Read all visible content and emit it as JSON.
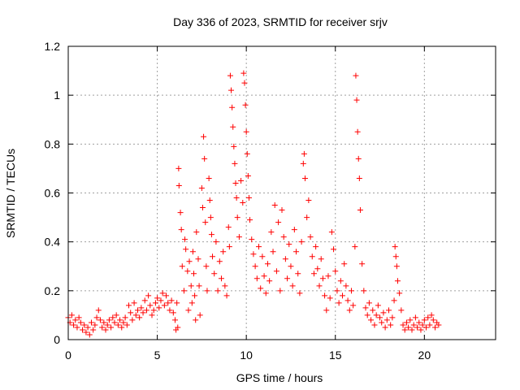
{
  "chart_data": {
    "type": "scatter",
    "title": "Day 336 of 2023, SRMTID for receiver srjv",
    "xlabel": "GPS time / hours",
    "ylabel": "SRMTID / TECUs",
    "xlim": [
      0,
      24
    ],
    "ylim": [
      0,
      1.2
    ],
    "x_ticks": [
      0,
      5,
      10,
      15,
      20
    ],
    "x_tick_labels": [
      "0",
      "5",
      "10",
      "15",
      "20"
    ],
    "y_ticks": [
      0,
      0.2,
      0.4,
      0.6,
      0.8,
      1.0,
      1.2
    ],
    "y_tick_labels": [
      "0",
      "0.2",
      "0.4",
      "0.6",
      "0.8",
      "1",
      "1.2"
    ],
    "grid": true,
    "marker": "+",
    "series": [
      {
        "name": "SRMTID",
        "color": "#ff0000",
        "points": [
          [
            0.0,
            0.09
          ],
          [
            0.1,
            0.07
          ],
          [
            0.2,
            0.1
          ],
          [
            0.3,
            0.06
          ],
          [
            0.4,
            0.08
          ],
          [
            0.5,
            0.05
          ],
          [
            0.6,
            0.09
          ],
          [
            0.7,
            0.07
          ],
          [
            0.8,
            0.04
          ],
          [
            0.9,
            0.06
          ],
          [
            1.0,
            0.03
          ],
          [
            1.1,
            0.05
          ],
          [
            1.2,
            0.02
          ],
          [
            1.3,
            0.07
          ],
          [
            1.4,
            0.04
          ],
          [
            1.5,
            0.06
          ],
          [
            1.6,
            0.09
          ],
          [
            1.7,
            0.12
          ],
          [
            1.8,
            0.08
          ],
          [
            1.9,
            0.05
          ],
          [
            2.0,
            0.07
          ],
          [
            2.1,
            0.04
          ],
          [
            2.2,
            0.06
          ],
          [
            2.3,
            0.08
          ],
          [
            2.4,
            0.05
          ],
          [
            2.5,
            0.09
          ],
          [
            2.6,
            0.07
          ],
          [
            2.7,
            0.1
          ],
          [
            2.8,
            0.06
          ],
          [
            2.9,
            0.08
          ],
          [
            3.0,
            0.05
          ],
          [
            3.1,
            0.07
          ],
          [
            3.2,
            0.09
          ],
          [
            3.3,
            0.06
          ],
          [
            3.4,
            0.14
          ],
          [
            3.5,
            0.11
          ],
          [
            3.6,
            0.08
          ],
          [
            3.7,
            0.15
          ],
          [
            3.8,
            0.1
          ],
          [
            3.9,
            0.12
          ],
          [
            4.0,
            0.09
          ],
          [
            4.1,
            0.13
          ],
          [
            4.2,
            0.11
          ],
          [
            4.3,
            0.16
          ],
          [
            4.4,
            0.12
          ],
          [
            4.5,
            0.18
          ],
          [
            4.6,
            0.14
          ],
          [
            4.7,
            0.1
          ],
          [
            4.8,
            0.12
          ],
          [
            4.9,
            0.15
          ],
          [
            5.0,
            0.17
          ],
          [
            5.1,
            0.13
          ],
          [
            5.2,
            0.16
          ],
          [
            5.3,
            0.19
          ],
          [
            5.4,
            0.14
          ],
          [
            5.5,
            0.18
          ],
          [
            5.6,
            0.15
          ],
          [
            5.7,
            0.12
          ],
          [
            5.8,
            0.16
          ],
          [
            5.9,
            0.11
          ],
          [
            6.0,
            0.08
          ],
          [
            6.05,
            0.04
          ],
          [
            6.1,
            0.15
          ],
          [
            6.15,
            0.05
          ],
          [
            6.2,
            0.7
          ],
          [
            6.22,
            0.63
          ],
          [
            6.3,
            0.52
          ],
          [
            6.35,
            0.45
          ],
          [
            6.4,
            0.3
          ],
          [
            6.5,
            0.2
          ],
          [
            6.55,
            0.41
          ],
          [
            6.6,
            0.37
          ],
          [
            6.7,
            0.28
          ],
          [
            6.75,
            0.12
          ],
          [
            6.8,
            0.32
          ],
          [
            6.9,
            0.22
          ],
          [
            6.95,
            0.15
          ],
          [
            7.0,
            0.36
          ],
          [
            7.05,
            0.27
          ],
          [
            7.1,
            0.18
          ],
          [
            7.15,
            0.08
          ],
          [
            7.2,
            0.44
          ],
          [
            7.3,
            0.33
          ],
          [
            7.35,
            0.22
          ],
          [
            7.4,
            0.1
          ],
          [
            7.5,
            0.62
          ],
          [
            7.55,
            0.54
          ],
          [
            7.6,
            0.83
          ],
          [
            7.65,
            0.74
          ],
          [
            7.7,
            0.48
          ],
          [
            7.75,
            0.3
          ],
          [
            7.8,
            0.2
          ],
          [
            7.9,
            0.66
          ],
          [
            7.95,
            0.57
          ],
          [
            8.0,
            0.5
          ],
          [
            8.05,
            0.43
          ],
          [
            8.1,
            0.34
          ],
          [
            8.2,
            0.27
          ],
          [
            8.3,
            0.4
          ],
          [
            8.4,
            0.2
          ],
          [
            8.5,
            0.32
          ],
          [
            8.6,
            0.25
          ],
          [
            8.7,
            0.36
          ],
          [
            8.8,
            0.22
          ],
          [
            8.9,
            0.18
          ],
          [
            9.0,
            0.46
          ],
          [
            9.05,
            0.38
          ],
          [
            9.1,
            1.08
          ],
          [
            9.15,
            1.02
          ],
          [
            9.2,
            0.95
          ],
          [
            9.25,
            0.87
          ],
          [
            9.3,
            0.79
          ],
          [
            9.35,
            0.72
          ],
          [
            9.4,
            0.64
          ],
          [
            9.45,
            0.58
          ],
          [
            9.5,
            0.5
          ],
          [
            9.6,
            0.42
          ],
          [
            9.7,
            0.65
          ],
          [
            9.8,
            0.56
          ],
          [
            9.85,
            1.09
          ],
          [
            9.9,
            1.05
          ],
          [
            9.95,
            0.96
          ],
          [
            10.0,
            0.85
          ],
          [
            10.05,
            0.76
          ],
          [
            10.1,
            0.67
          ],
          [
            10.15,
            0.58
          ],
          [
            10.2,
            0.49
          ],
          [
            10.3,
            0.41
          ],
          [
            10.4,
            0.35
          ],
          [
            10.5,
            0.3
          ],
          [
            10.6,
            0.25
          ],
          [
            10.7,
            0.38
          ],
          [
            10.8,
            0.21
          ],
          [
            10.9,
            0.34
          ],
          [
            11.0,
            0.26
          ],
          [
            11.1,
            0.19
          ],
          [
            11.2,
            0.31
          ],
          [
            11.3,
            0.24
          ],
          [
            11.4,
            0.44
          ],
          [
            11.5,
            0.36
          ],
          [
            11.6,
            0.55
          ],
          [
            11.7,
            0.28
          ],
          [
            11.8,
            0.48
          ],
          [
            11.9,
            0.2
          ],
          [
            12.0,
            0.53
          ],
          [
            12.1,
            0.42
          ],
          [
            12.2,
            0.33
          ],
          [
            12.3,
            0.25
          ],
          [
            12.4,
            0.39
          ],
          [
            12.5,
            0.3
          ],
          [
            12.6,
            0.22
          ],
          [
            12.7,
            0.45
          ],
          [
            12.8,
            0.36
          ],
          [
            12.9,
            0.27
          ],
          [
            13.0,
            0.19
          ],
          [
            13.1,
            0.4
          ],
          [
            13.2,
            0.72
          ],
          [
            13.25,
            0.76
          ],
          [
            13.3,
            0.66
          ],
          [
            13.4,
            0.5
          ],
          [
            13.5,
            0.57
          ],
          [
            13.6,
            0.42
          ],
          [
            13.7,
            0.34
          ],
          [
            13.8,
            0.27
          ],
          [
            13.9,
            0.38
          ],
          [
            14.0,
            0.29
          ],
          [
            14.1,
            0.22
          ],
          [
            14.2,
            0.33
          ],
          [
            14.3,
            0.25
          ],
          [
            14.4,
            0.18
          ],
          [
            14.5,
            0.12
          ],
          [
            14.6,
            0.26
          ],
          [
            14.7,
            0.17
          ],
          [
            14.8,
            0.44
          ],
          [
            14.9,
            0.37
          ],
          [
            15.0,
            0.28
          ],
          [
            15.1,
            0.2
          ],
          [
            15.2,
            0.15
          ],
          [
            15.3,
            0.24
          ],
          [
            15.4,
            0.18
          ],
          [
            15.5,
            0.31
          ],
          [
            15.6,
            0.22
          ],
          [
            15.7,
            0.16
          ],
          [
            15.8,
            0.12
          ],
          [
            15.9,
            0.2
          ],
          [
            16.0,
            0.14
          ],
          [
            16.1,
            0.38
          ],
          [
            16.15,
            1.08
          ],
          [
            16.2,
            0.98
          ],
          [
            16.25,
            0.85
          ],
          [
            16.3,
            0.74
          ],
          [
            16.35,
            0.66
          ],
          [
            16.4,
            0.53
          ],
          [
            16.5,
            0.31
          ],
          [
            16.6,
            0.2
          ],
          [
            16.7,
            0.13
          ],
          [
            16.8,
            0.1
          ],
          [
            16.9,
            0.15
          ],
          [
            17.0,
            0.08
          ],
          [
            17.1,
            0.12
          ],
          [
            17.2,
            0.06
          ],
          [
            17.3,
            0.1
          ],
          [
            17.4,
            0.14
          ],
          [
            17.5,
            0.09
          ],
          [
            17.6,
            0.07
          ],
          [
            17.7,
            0.11
          ],
          [
            17.8,
            0.05
          ],
          [
            17.9,
            0.08
          ],
          [
            18.0,
            0.12
          ],
          [
            18.1,
            0.06
          ],
          [
            18.2,
            0.09
          ],
          [
            18.3,
            0.16
          ],
          [
            18.35,
            0.38
          ],
          [
            18.4,
            0.34
          ],
          [
            18.45,
            0.3
          ],
          [
            18.5,
            0.24
          ],
          [
            18.6,
            0.19
          ],
          [
            18.7,
            0.12
          ],
          [
            18.8,
            0.06
          ],
          [
            18.9,
            0.04
          ],
          [
            19.0,
            0.07
          ],
          [
            19.1,
            0.05
          ],
          [
            19.2,
            0.08
          ],
          [
            19.3,
            0.04
          ],
          [
            19.4,
            0.06
          ],
          [
            19.5,
            0.09
          ],
          [
            19.6,
            0.05
          ],
          [
            19.7,
            0.07
          ],
          [
            19.8,
            0.04
          ],
          [
            19.9,
            0.06
          ],
          [
            20.0,
            0.08
          ],
          [
            20.1,
            0.05
          ],
          [
            20.2,
            0.09
          ],
          [
            20.3,
            0.06
          ],
          [
            20.4,
            0.1
          ],
          [
            20.5,
            0.08
          ],
          [
            20.6,
            0.05
          ],
          [
            20.7,
            0.07
          ],
          [
            20.8,
            0.06
          ]
        ]
      }
    ]
  }
}
